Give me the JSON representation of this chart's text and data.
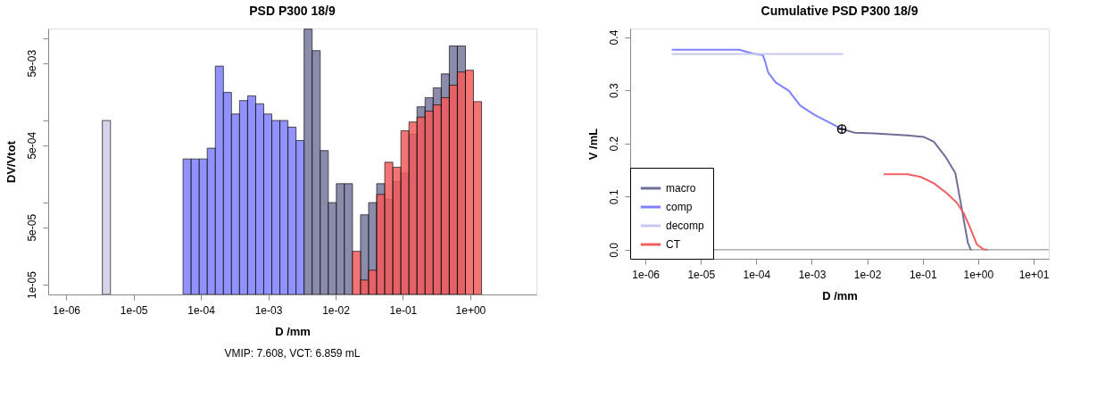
{
  "chart_data": [
    {
      "type": "histogram",
      "title": "PSD P300 18/9",
      "xlabel": "D /mm",
      "ylabel": "DV/Vtot",
      "annotations": [
        "VMIP: 7.608, VCT: 6.859 mL"
      ],
      "log": "xy",
      "grid": false,
      "xlim": [
        5.4e-07,
        9.6
      ],
      "ylim": [
        7.6e-06,
        0.0132
      ],
      "xticks": [
        {
          "value": 1e-06,
          "label": "1e-06"
        },
        {
          "value": 1e-05,
          "label": "1e-05"
        },
        {
          "value": 0.0001,
          "label": "1e-04"
        },
        {
          "value": 0.001,
          "label": "1e-03"
        },
        {
          "value": 0.01,
          "label": "1e-02"
        },
        {
          "value": 0.1,
          "label": "1e-01"
        },
        {
          "value": 1,
          "label": "1e+00"
        }
      ],
      "yticks": [
        {
          "value": 1e-05,
          "label": "1e-05"
        },
        {
          "value": 5e-05,
          "label": "5e-05"
        },
        {
          "value": 0.0001,
          "label": null
        },
        {
          "value": 0.0005,
          "label": "5e-04"
        },
        {
          "value": 0.001,
          "label": null
        },
        {
          "value": 0.005,
          "label": "5e-03"
        },
        {
          "value": 0.01,
          "label": null
        }
      ],
      "bins": [
        3.44e-06,
        4.54e-06,
        5.98e-06,
        7.88e-06,
        1.038e-05,
        1.368e-05,
        1.803e-05,
        2.375e-05,
        3.13e-05,
        4.124e-05,
        5.433e-05,
        7.159e-05,
        9.432e-05,
        0.0001243,
        0.0001638,
        0.0002158,
        0.0002843,
        0.0003746,
        0.0004936,
        0.0006505,
        0.000857,
        0.001129,
        0.001488,
        0.001961,
        0.002584,
        0.003404,
        0.004485,
        0.00591,
        0.007788,
        0.01026,
        0.01352,
        0.01782,
        0.02348,
        0.03094,
        0.04077,
        0.0537,
        0.07077,
        0.09324,
        0.1229,
        0.1619,
        0.2133,
        0.2811,
        0.3704,
        0.488,
        0.643,
        0.8472,
        1.116,
        1.471
      ],
      "series": [
        {
          "color": "#d0cce8",
          "values": [
            0.001,
            null,
            null,
            null,
            null,
            null,
            null,
            null,
            null,
            null,
            null,
            null,
            null,
            null,
            null,
            null,
            null,
            null,
            null,
            null,
            null,
            null,
            null,
            null,
            null,
            null,
            null,
            null,
            null,
            null,
            null,
            null,
            null,
            null,
            null,
            null,
            null,
            null,
            null,
            null,
            null,
            null,
            null,
            null,
            null,
            null,
            null
          ]
        },
        {
          "color": "#8080ff",
          "values": [
            null,
            null,
            null,
            null,
            null,
            null,
            null,
            null,
            null,
            null,
            0.00034,
            0.00034,
            0.00034,
            0.00046,
            0.0046,
            0.0022,
            0.0012,
            0.00175,
            0.002,
            0.0016,
            0.0012,
            0.001,
            0.001,
            0.00083,
            0.00057,
            null,
            null,
            null,
            null,
            null,
            null,
            null,
            null,
            null,
            null,
            null,
            null,
            null,
            null,
            null,
            null,
            null,
            null,
            null,
            null,
            null,
            null
          ]
        },
        {
          "color": "#77779e",
          "values": [
            null,
            null,
            null,
            null,
            null,
            null,
            null,
            null,
            null,
            null,
            null,
            null,
            null,
            null,
            null,
            null,
            null,
            null,
            null,
            null,
            null,
            null,
            null,
            null,
            null,
            0.013,
            0.0071,
            0.00043,
            0.0001,
            0.00017,
            0.00017,
            null,
            7.1e-05,
            0.0001,
            0.00017,
            0.00011,
            0.00018,
            0.00023,
            0.00068,
            0.00147,
            0.0019,
            0.0025,
            0.0037,
            0.0081,
            0.0081,
            null,
            null
          ]
        },
        {
          "color": "#f25c5c",
          "values": [
            null,
            null,
            null,
            null,
            null,
            null,
            null,
            null,
            null,
            null,
            null,
            null,
            null,
            null,
            null,
            null,
            null,
            null,
            null,
            null,
            null,
            null,
            null,
            null,
            null,
            null,
            null,
            null,
            null,
            null,
            null,
            2.55e-05,
            1.14e-05,
            1.5e-05,
            0.000126,
            0.00031,
            0.00027,
            0.00075,
            0.00096,
            0.0011,
            0.0013,
            0.00155,
            0.0019,
            0.0027,
            0.0039,
            0.0041,
            0.0017
          ]
        }
      ]
    },
    {
      "type": "line",
      "title": "Cumulative PSD P300 18/9",
      "xlabel": "D /mm",
      "ylabel": "V /mL",
      "log": "x",
      "grid": false,
      "legend": "bottom left",
      "line_style": "solid",
      "marker": "none",
      "xlim": [
        5.3e-07,
        18.8
      ],
      "ylim": [
        -0.017,
        0.416
      ],
      "xticks": [
        {
          "value": 1e-06,
          "label": "1e-06"
        },
        {
          "value": 1e-05,
          "label": "1e-05"
        },
        {
          "value": 0.0001,
          "label": "1e-04"
        },
        {
          "value": 0.001,
          "label": "1e-03"
        },
        {
          "value": 0.01,
          "label": "1e-02"
        },
        {
          "value": 0.1,
          "label": "1e-01"
        },
        {
          "value": 1,
          "label": "1e+00"
        },
        {
          "value": 10,
          "label": "1e+01"
        }
      ],
      "yticks": [
        {
          "value": 0,
          "label": "0.0"
        },
        0.1,
        0.2,
        0.3,
        0.4
      ],
      "ref_lines": [
        {
          "axis": "y",
          "value": 0,
          "color": "#808080"
        }
      ],
      "series": [
        {
          "name": "macro",
          "color": "#6e6e99",
          "x": [
            0.00348,
            0.00594,
            0.0135,
            0.0532,
            0.106,
            0.159,
            0.257,
            0.388,
            0.511,
            0.653,
            0.739
          ],
          "values": [
            0.227,
            0.22,
            0.219,
            0.215,
            0.212,
            0.203,
            0.175,
            0.144,
            0.075,
            0.013,
            0
          ]
        },
        {
          "name": "comp",
          "color": "#8080ff",
          "x": [
            3.08e-06,
            4.9e-05,
            8.7e-05,
            0.000131,
            0.000143,
            0.000164,
            0.000221,
            0.000383,
            0.000619,
            0.00115,
            0.00228,
            0.00348
          ],
          "values": [
            0.376,
            0.376,
            0.369,
            0.366,
            0.355,
            0.333,
            0.315,
            0.299,
            0.271,
            0.253,
            0.237,
            0.227
          ]
        },
        {
          "name": "decomp",
          "color": "#c8c8ee",
          "x": [
            3.08e-06,
            0.00358
          ],
          "values": [
            0.368,
            0.368
          ]
        },
        {
          "name": "CT",
          "color": "#f06060",
          "x": [
            0.0204,
            0.0532,
            0.092,
            0.159,
            0.275,
            0.416,
            0.547,
            0.719,
            0.946,
            1.24,
            1.43
          ],
          "values": [
            0.142,
            0.142,
            0.137,
            0.125,
            0.106,
            0.088,
            0.069,
            0.041,
            0.01,
            0.001,
            0
          ]
        },
        {
          "type": "scatter",
          "marker": "cross",
          "color": "#000000",
          "x": [
            0.00348
          ],
          "values": [
            0.227
          ]
        }
      ]
    }
  ]
}
